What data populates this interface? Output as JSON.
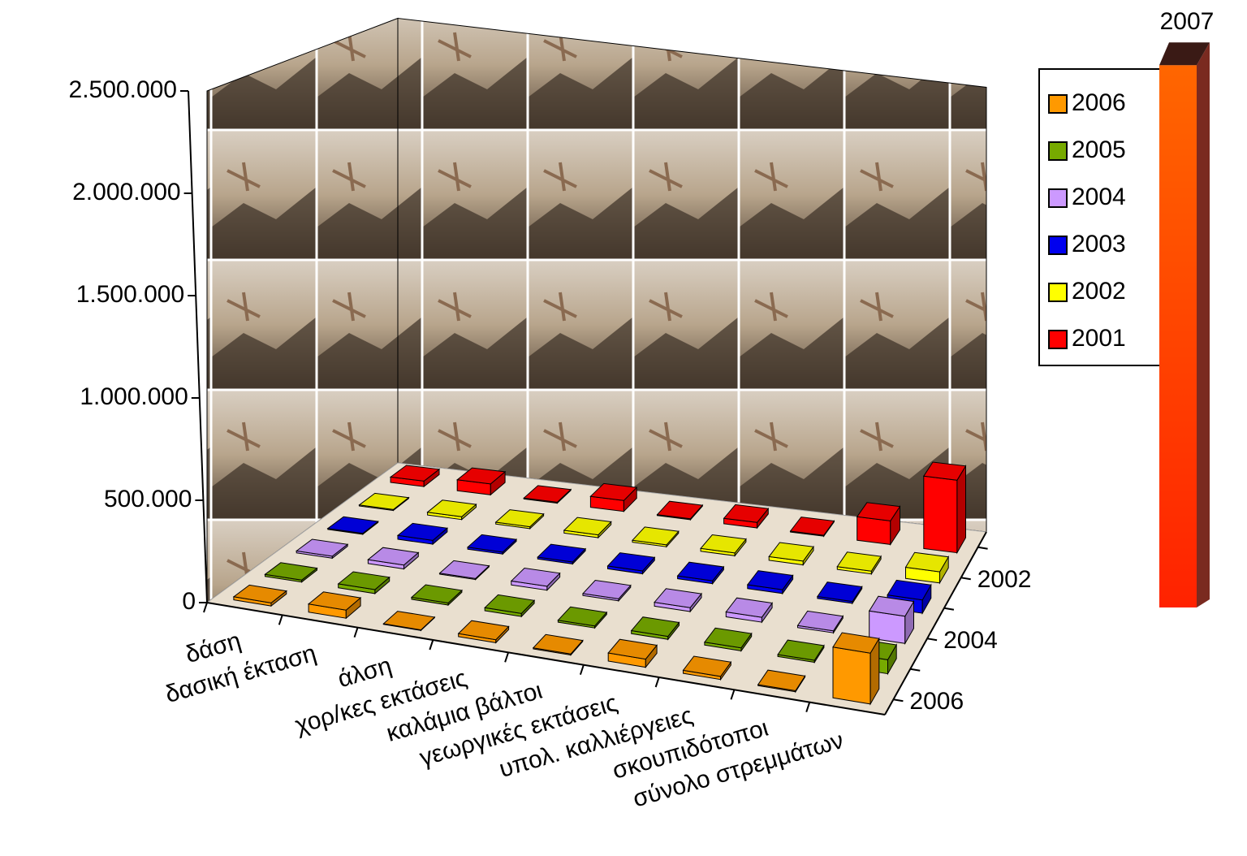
{
  "chart_data": {
    "type": "bar3d",
    "categories": [
      "δάση",
      "δασική έκταση",
      "άλση",
      "χορ/κες εκτάσεις",
      "καλάμια βάλτοι",
      "γεωργικές εκτάσεις",
      "υπολ. καλλιέργειες",
      "σκουπιδότοποι",
      "σύνολο στρεμμάτων"
    ],
    "series": [
      {
        "name": "2006",
        "color": "#ff9900",
        "values": [
          15000,
          40000,
          3000,
          15000,
          5000,
          40000,
          15000,
          5000,
          250000
        ]
      },
      {
        "name": "2005",
        "color": "#77aa00",
        "values": [
          10000,
          20000,
          10000,
          15000,
          10000,
          15000,
          15000,
          10000,
          70000
        ]
      },
      {
        "name": "2004",
        "color": "#cc99ff",
        "values": [
          10000,
          20000,
          5000,
          20000,
          10000,
          20000,
          25000,
          10000,
          140000
        ]
      },
      {
        "name": "2003",
        "color": "#0000ee",
        "values": [
          5000,
          20000,
          10000,
          10000,
          15000,
          15000,
          20000,
          10000,
          70000
        ]
      },
      {
        "name": "2002",
        "color": "#ffff00",
        "values": [
          5000,
          15000,
          10000,
          15000,
          10000,
          15000,
          20000,
          15000,
          60000
        ]
      },
      {
        "name": "2001",
        "color": "#ff0000",
        "values": [
          30000,
          60000,
          5000,
          60000,
          5000,
          30000,
          5000,
          130000,
          400000
        ]
      }
    ],
    "outlier": {
      "name": "2007",
      "value": 2650000,
      "color": "#ff5500"
    },
    "ylim": [
      0,
      2500000
    ],
    "yticks": [
      0,
      {
        "value": 500000,
        "label": "500.000"
      },
      {
        "value": 1000000,
        "label": "1.000.000"
      },
      {
        "value": 1500000,
        "label": "1.500.000"
      },
      {
        "value": 2000000,
        "label": "2.000.000"
      },
      {
        "value": 2500000,
        "label": "2.500.000"
      }
    ],
    "grid": false,
    "legend": "right"
  }
}
